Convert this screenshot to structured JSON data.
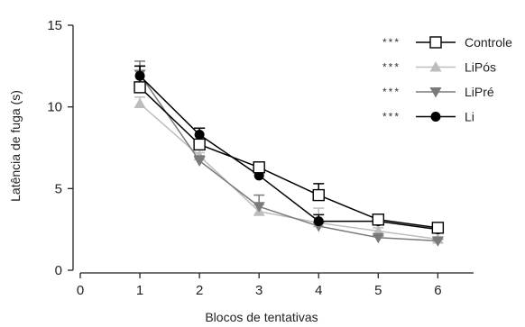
{
  "chart_data": {
    "type": "line",
    "title": "",
    "xlabel": "Blocos de tentativas",
    "ylabel": "Latência de fuga (s)",
    "xlim": [
      0,
      6.6
    ],
    "ylim": [
      0,
      15
    ],
    "x_ticks": [
      0,
      1,
      2,
      3,
      4,
      5,
      6
    ],
    "y_ticks": [
      0,
      5,
      10,
      15
    ],
    "grid": false,
    "legend_position": "top-right",
    "series": [
      {
        "name": "Controle",
        "marker": "square-open",
        "color": "#000000",
        "significance": "***",
        "x": [
          1,
          2,
          3,
          4,
          5,
          6
        ],
        "y": [
          11.2,
          7.7,
          6.3,
          4.6,
          3.1,
          2.6
        ],
        "err": [
          1.3,
          1.0,
          0.3,
          0.7,
          0.3,
          0.2
        ]
      },
      {
        "name": "LiPós",
        "marker": "triangle-up",
        "color": "#bdbdbd",
        "significance": "***",
        "x": [
          1,
          2,
          3,
          4,
          5,
          6
        ],
        "y": [
          10.2,
          7.0,
          3.6,
          2.9,
          2.4,
          1.9
        ],
        "err": [
          0.4,
          0.2,
          0.4,
          0.9,
          0.2,
          0.1
        ]
      },
      {
        "name": "LiPré",
        "marker": "triangle-down",
        "color": "#7a7a7a",
        "significance": "***",
        "x": [
          1,
          2,
          3,
          4,
          5,
          6
        ],
        "y": [
          12.0,
          6.7,
          3.9,
          2.7,
          2.0,
          1.8
        ],
        "err": [
          0.8,
          0.3,
          0.7,
          0.2,
          0.1,
          0.1
        ]
      },
      {
        "name": "Li",
        "marker": "circle-filled",
        "color": "#000000",
        "significance": "***",
        "x": [
          1,
          2,
          3,
          4,
          5,
          6
        ],
        "y": [
          11.9,
          8.3,
          5.8,
          3.0,
          3.0,
          2.5
        ],
        "err": [
          0.6,
          0.4,
          0.3,
          0.4,
          0.3,
          0.1
        ]
      }
    ]
  }
}
